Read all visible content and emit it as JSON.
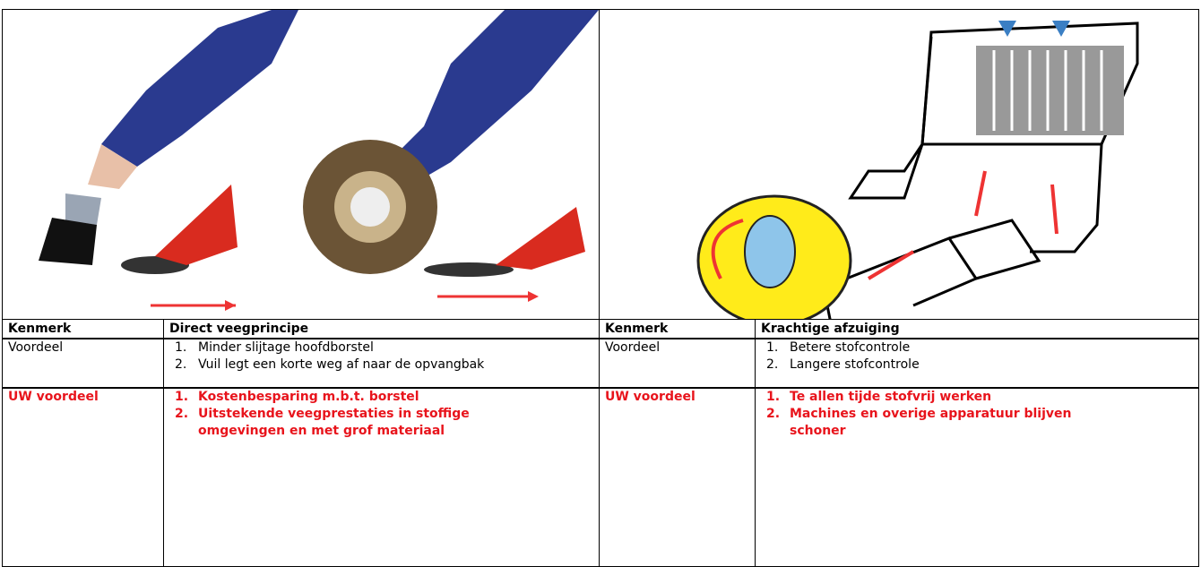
{
  "panels": [
    {
      "header": {
        "label": "Kenmerk",
        "title": "Direct veegprincipe"
      },
      "rows": [
        {
          "label": "Voordeel",
          "items": [
            {
              "marker": "1.",
              "text": "Minder slijtage hoofdborstel"
            },
            {
              "marker": "2.",
              "text": "Vuil legt een korte weg af naar de opvangbak"
            }
          ]
        },
        {
          "label": "UW voordeel",
          "items": [
            {
              "marker": "1.",
              "text": "Kostenbesparing m.b.t. borstel"
            },
            {
              "marker": "2.",
              "text": "Uitstekende veegprestaties in stoffige omgevingen en met grof materiaal"
            }
          ]
        }
      ]
    },
    {
      "header": {
        "label": "Kenmerk",
        "title": "Krachtige afzuiging"
      },
      "rows": [
        {
          "label": "Voordeel",
          "items": [
            {
              "marker": "1.",
              "text": "Betere stofcontrole"
            },
            {
              "marker": "2.",
              "text": "Langere stofcontrole"
            }
          ]
        },
        {
          "label": "UW voordeel",
          "items": [
            {
              "marker": "1.",
              "text": "Te allen tijde stofvrij werken"
            },
            {
              "marker": "2.",
              "text": "Machines en overige apparatuur blijven schoner"
            }
          ]
        }
      ]
    }
  ]
}
